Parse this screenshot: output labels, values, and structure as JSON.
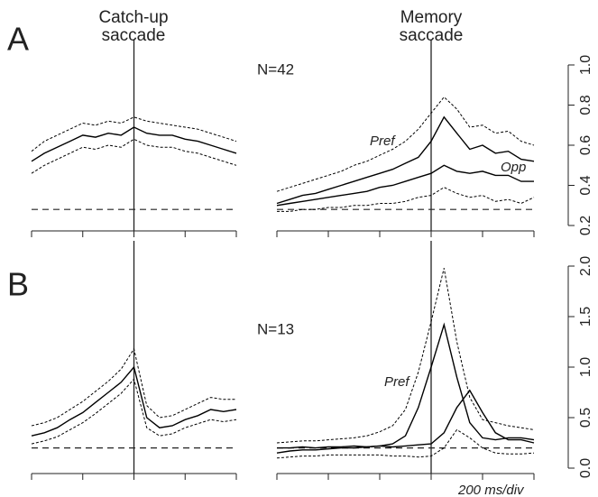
{
  "chart_data": [
    {
      "type": "line",
      "panel": "A",
      "title": [
        "Catch-up",
        "saccade"
      ],
      "x": [
        -400,
        -350,
        -300,
        -250,
        -200,
        -150,
        -100,
        -50,
        0,
        50,
        100,
        150,
        200,
        250,
        300,
        350,
        400
      ],
      "xlim": [
        -400,
        400
      ],
      "xticks": [
        -400,
        -200,
        0,
        200,
        400
      ],
      "ylim": [
        0.2,
        1.0
      ],
      "vline": 0,
      "hline": 0.28,
      "series": [
        {
          "color": "#000",
          "dash": false,
          "values": [
            0.52,
            0.56,
            0.59,
            0.62,
            0.65,
            0.64,
            0.66,
            0.65,
            0.69,
            0.66,
            0.65,
            0.65,
            0.63,
            0.62,
            0.6,
            0.58,
            0.56
          ]
        },
        {
          "color": "#000",
          "dash": true,
          "values": [
            0.57,
            0.62,
            0.65,
            0.68,
            0.71,
            0.7,
            0.72,
            0.71,
            0.74,
            0.72,
            0.71,
            0.7,
            0.69,
            0.68,
            0.66,
            0.64,
            0.62
          ]
        },
        {
          "color": "#000",
          "dash": true,
          "values": [
            0.46,
            0.5,
            0.53,
            0.56,
            0.59,
            0.58,
            0.6,
            0.59,
            0.63,
            0.6,
            0.59,
            0.59,
            0.57,
            0.56,
            0.54,
            0.52,
            0.5
          ]
        }
      ]
    },
    {
      "type": "line",
      "title": [
        "Memory",
        "saccade"
      ],
      "annotations": [
        "N=42",
        "Pref",
        "Opp"
      ],
      "x": [
        -600,
        -550,
        -500,
        -450,
        -400,
        -350,
        -300,
        -250,
        -200,
        -150,
        -100,
        -50,
        0,
        50,
        100,
        150,
        200,
        250,
        300,
        350,
        400
      ],
      "xlim": [
        -600,
        400
      ],
      "xticks": [
        -600,
        -400,
        -200,
        0,
        200,
        400
      ],
      "ylim": [
        0.2,
        1.0
      ],
      "yticks": [
        0.2,
        0.4,
        0.6,
        0.8,
        {
          "value": 1,
          "label": "1.0"
        }
      ],
      "vline": 0,
      "hline": 0.28,
      "series": [
        {
          "name": "Pref",
          "color": "#000",
          "dash": false,
          "values": [
            0.31,
            0.33,
            0.35,
            0.36,
            0.38,
            0.4,
            0.42,
            0.44,
            0.46,
            0.48,
            0.51,
            0.54,
            0.62,
            0.74,
            0.66,
            0.58,
            0.6,
            0.56,
            0.57,
            0.53,
            0.52
          ]
        },
        {
          "name": "Opp",
          "color": "#000",
          "dash": false,
          "values": [
            0.3,
            0.31,
            0.32,
            0.33,
            0.34,
            0.35,
            0.36,
            0.37,
            0.39,
            0.4,
            0.42,
            0.44,
            0.46,
            0.5,
            0.47,
            0.46,
            0.47,
            0.45,
            0.45,
            0.42,
            0.42
          ]
        },
        {
          "color": "#000",
          "dash": true,
          "values": [
            0.37,
            0.39,
            0.41,
            0.43,
            0.45,
            0.47,
            0.5,
            0.52,
            0.55,
            0.58,
            0.62,
            0.68,
            0.76,
            0.84,
            0.78,
            0.69,
            0.7,
            0.66,
            0.67,
            0.62,
            0.6
          ]
        },
        {
          "color": "#000",
          "dash": true,
          "values": [
            0.27,
            0.27,
            0.28,
            0.28,
            0.29,
            0.29,
            0.3,
            0.3,
            0.31,
            0.31,
            0.32,
            0.34,
            0.35,
            0.39,
            0.36,
            0.34,
            0.35,
            0.32,
            0.33,
            0.31,
            0.34
          ]
        }
      ]
    },
    {
      "type": "line",
      "panel": "B",
      "x": [
        -400,
        -350,
        -300,
        -250,
        -200,
        -150,
        -100,
        -50,
        0,
        50,
        100,
        150,
        200,
        250,
        300,
        350,
        400
      ],
      "xlim": [
        -400,
        400
      ],
      "xticks": [
        -400,
        -200,
        0,
        200,
        400
      ],
      "ylim": [
        0,
        2
      ],
      "vline": 0,
      "hline": 0.2,
      "series": [
        {
          "color": "#000",
          "dash": false,
          "values": [
            0.32,
            0.35,
            0.4,
            0.48,
            0.55,
            0.65,
            0.75,
            0.85,
            1.0,
            0.5,
            0.4,
            0.42,
            0.48,
            0.52,
            0.58,
            0.56,
            0.58
          ]
        },
        {
          "color": "#000",
          "dash": true,
          "values": [
            0.42,
            0.45,
            0.5,
            0.58,
            0.66,
            0.76,
            0.86,
            0.98,
            1.18,
            0.62,
            0.5,
            0.52,
            0.58,
            0.64,
            0.7,
            0.68,
            0.68
          ]
        },
        {
          "color": "#000",
          "dash": true,
          "values": [
            0.24,
            0.27,
            0.31,
            0.38,
            0.45,
            0.54,
            0.64,
            0.74,
            0.88,
            0.4,
            0.32,
            0.34,
            0.4,
            0.44,
            0.48,
            0.46,
            0.48
          ]
        }
      ]
    },
    {
      "type": "line",
      "annotations": [
        "N=13",
        "Pref",
        "200 ms/div"
      ],
      "x": [
        -600,
        -550,
        -500,
        -450,
        -400,
        -350,
        -300,
        -250,
        -200,
        -150,
        -100,
        -50,
        0,
        50,
        100,
        150,
        200,
        250,
        300,
        350,
        400
      ],
      "xlim": [
        -600,
        400
      ],
      "xticks": [
        -600,
        -400,
        -200,
        0,
        200,
        400
      ],
      "ylim": [
        0,
        2
      ],
      "yticks": [
        {
          "value": 0,
          "label": "0.0"
        },
        0.5,
        {
          "value": 1,
          "label": "1.0"
        },
        1.5,
        {
          "value": 2,
          "label": "2.0"
        }
      ],
      "vline": 0,
      "hline": 0.2,
      "series": [
        {
          "name": "Pref",
          "color": "#000",
          "dash": false,
          "values": [
            0.15,
            0.17,
            0.18,
            0.18,
            0.19,
            0.2,
            0.2,
            0.21,
            0.22,
            0.24,
            0.32,
            0.6,
            1.0,
            1.42,
            0.9,
            0.45,
            0.3,
            0.28,
            0.3,
            0.3,
            0.28
          ]
        },
        {
          "color": "#000",
          "dash": false,
          "values": [
            0.2,
            0.2,
            0.21,
            0.2,
            0.21,
            0.21,
            0.22,
            0.21,
            0.22,
            0.21,
            0.22,
            0.23,
            0.24,
            0.35,
            0.6,
            0.77,
            0.55,
            0.35,
            0.28,
            0.28,
            0.25
          ]
        },
        {
          "color": "#000",
          "dash": true,
          "values": [
            0.25,
            0.26,
            0.27,
            0.27,
            0.28,
            0.29,
            0.3,
            0.32,
            0.36,
            0.42,
            0.58,
            0.95,
            1.45,
            1.98,
            1.25,
            0.7,
            0.48,
            0.45,
            0.42,
            0.4,
            0.38
          ]
        },
        {
          "color": "#000",
          "dash": true,
          "values": [
            0.1,
            0.11,
            0.12,
            0.12,
            0.13,
            0.13,
            0.13,
            0.13,
            0.13,
            0.12,
            0.12,
            0.11,
            0.12,
            0.2,
            0.38,
            0.3,
            0.2,
            0.15,
            0.14,
            0.14,
            0.15
          ]
        }
      ]
    }
  ]
}
